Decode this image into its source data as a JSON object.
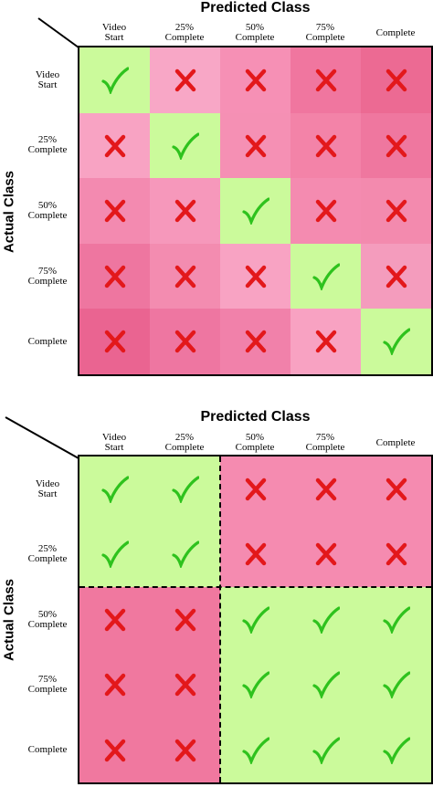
{
  "colors": {
    "correct": "#cbfa9b",
    "check": "#2ec21d",
    "cross": "#e3181b"
  },
  "top": {
    "title": "Predicted Class",
    "y_label": "Actual Class",
    "columns": [
      [
        "Video",
        "Start"
      ],
      [
        "25%",
        "Complete"
      ],
      [
        "50%",
        "Complete"
      ],
      [
        "75%",
        "Complete"
      ],
      [
        "Complete"
      ]
    ],
    "rows": [
      [
        "Video",
        "Start"
      ],
      [
        "25%",
        "Complete"
      ],
      [
        "50%",
        "Complete"
      ],
      [
        "75%",
        "Complete"
      ],
      [
        "Complete"
      ]
    ],
    "marks": [
      [
        "check",
        "cross",
        "cross",
        "cross",
        "cross"
      ],
      [
        "cross",
        "check",
        "cross",
        "cross",
        "cross"
      ],
      [
        "cross",
        "cross",
        "check",
        "cross",
        "cross"
      ],
      [
        "cross",
        "cross",
        "cross",
        "check",
        "cross"
      ],
      [
        "cross",
        "cross",
        "cross",
        "cross",
        "check"
      ]
    ],
    "fills": [
      [
        "#cbfa9b",
        "#f8a7c6",
        "#f690b5",
        "#f0769f",
        "#ec6a93"
      ],
      [
        "#f8a3c3",
        "#cbfa9b",
        "#f590b4",
        "#f383a8",
        "#ef779f"
      ],
      [
        "#f38ab0",
        "#f698bb",
        "#cbfa9b",
        "#f48bb0",
        "#f38aae"
      ],
      [
        "#ee76a0",
        "#f38cb0",
        "#f8a3c3",
        "#cbfa9b",
        "#f49cbd"
      ],
      [
        "#ea6491",
        "#ee76a1",
        "#f181aa",
        "#f8a2c2",
        "#cbfa9b"
      ]
    ]
  },
  "bottom": {
    "title": "Predicted Class",
    "y_label": "Actual Class",
    "columns": [
      [
        "Video",
        "Start"
      ],
      [
        "25%",
        "Complete"
      ],
      [
        "50%",
        "Complete"
      ],
      [
        "75%",
        "Complete"
      ],
      [
        "Complete"
      ]
    ],
    "rows": [
      [
        "Video",
        "Start"
      ],
      [
        "25%",
        "Complete"
      ],
      [
        "50%",
        "Complete"
      ],
      [
        "75%",
        "Complete"
      ],
      [
        "Complete"
      ]
    ],
    "marks": [
      [
        "check",
        "check",
        "cross",
        "cross",
        "cross"
      ],
      [
        "check",
        "check",
        "cross",
        "cross",
        "cross"
      ],
      [
        "cross",
        "cross",
        "check",
        "check",
        "check"
      ],
      [
        "cross",
        "cross",
        "check",
        "check",
        "check"
      ],
      [
        "cross",
        "cross",
        "check",
        "check",
        "check"
      ]
    ],
    "fills": [
      [
        "#cbfa9b",
        "#cbfa9b",
        "#f58bb0",
        "#f58bb0",
        "#f58bb0"
      ],
      [
        "#cbfa9b",
        "#cbfa9b",
        "#f58bb0",
        "#f58bb0",
        "#f58bb0"
      ],
      [
        "#f0789f",
        "#f0789f",
        "#cbfa9b",
        "#cbfa9b",
        "#cbfa9b"
      ],
      [
        "#f0789f",
        "#f0789f",
        "#cbfa9b",
        "#cbfa9b",
        "#cbfa9b"
      ],
      [
        "#f0789f",
        "#f0789f",
        "#cbfa9b",
        "#cbfa9b",
        "#cbfa9b"
      ]
    ],
    "dividers": {
      "after_column": 2,
      "after_row": 2
    }
  }
}
